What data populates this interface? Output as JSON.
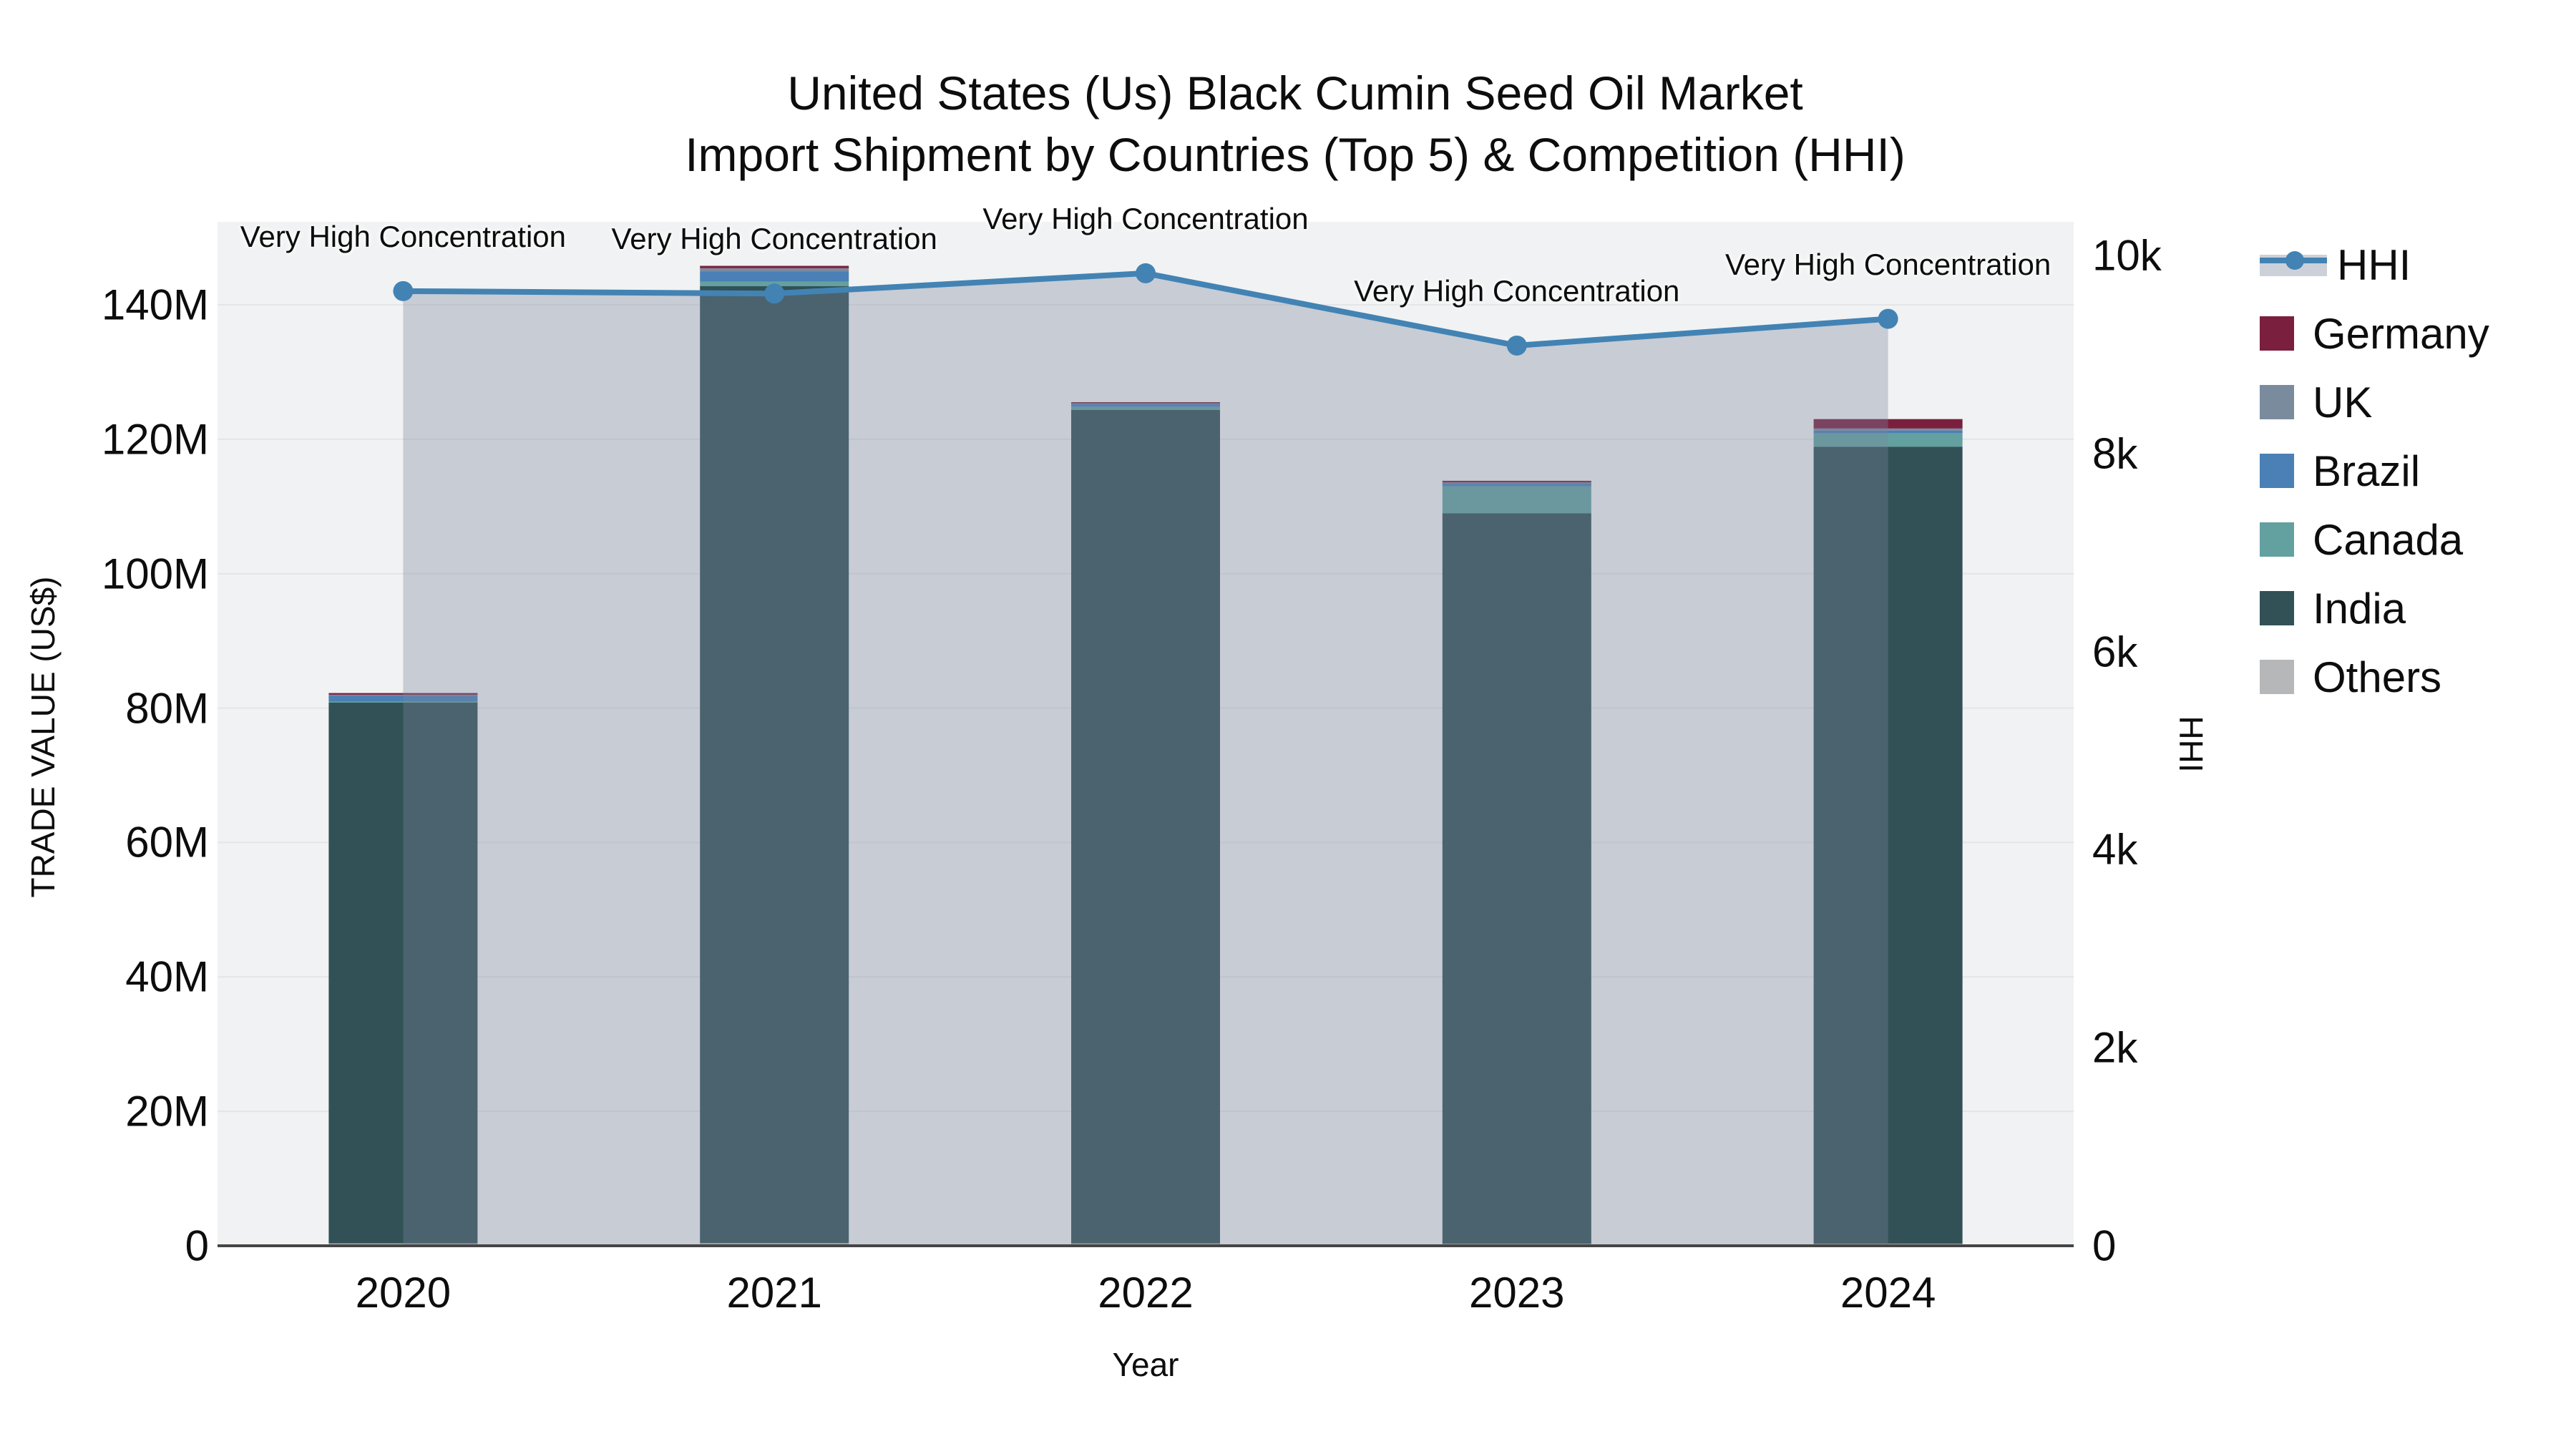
{
  "title": {
    "line1": "United States (Us) Black Cumin Seed Oil Market",
    "line2": "Import Shipment by Countries (Top 5) & Competition (HHI)"
  },
  "axes": {
    "left": {
      "title": "TRADE VALUE (US$)",
      "ticks": [
        {
          "label": "0",
          "value": 0
        },
        {
          "label": "20M",
          "value": 20
        },
        {
          "label": "40M",
          "value": 40
        },
        {
          "label": "60M",
          "value": 60
        },
        {
          "label": "80M",
          "value": 80
        },
        {
          "label": "100M",
          "value": 100
        },
        {
          "label": "120M",
          "value": 120
        },
        {
          "label": "140M",
          "value": 140
        }
      ]
    },
    "right": {
      "title": "HHI",
      "ticks": [
        {
          "label": "0",
          "value": 0
        },
        {
          "label": "2k",
          "value": 2000
        },
        {
          "label": "4k",
          "value": 4000
        },
        {
          "label": "6k",
          "value": 6000
        },
        {
          "label": "8k",
          "value": 8000
        },
        {
          "label": "10k",
          "value": 10000
        }
      ]
    },
    "x": {
      "title": "Year"
    }
  },
  "annotation_text": "Very High Concentration",
  "colors": {
    "hhi_line": "#4283b4",
    "hhi_area": "rgba(122,136,159,0.35)",
    "plot_bg": "#f1f2f3",
    "gridline": "#e4e5e7",
    "axis_line": "#454545",
    "germany": "#7a1f3e",
    "uk": "#7b8b9e",
    "brazil": "#4a80b5",
    "canada": "#63a0a0",
    "india": "#315156",
    "others": "#b5b7b9",
    "legend_band": "#ccd1d9"
  },
  "chart_data": {
    "type": "bar+line",
    "title": "United States (Us) Black Cumin Seed Oil Market Import Shipment by Countries (Top 5) & Competition (HHI)",
    "xlabel": "Year",
    "ylabel_left": "TRADE VALUE (US$)",
    "ylabel_right": "HHI",
    "ylim_left_millions": [
      0,
      152
    ],
    "ylim_right": [
      0,
      10500
    ],
    "grid": true,
    "legend_position": "right",
    "categories": [
      "2020",
      "2021",
      "2022",
      "2023",
      "2024"
    ],
    "bar_unit": "millions USD",
    "stack_order_bottom_to_top": [
      "Others",
      "India",
      "Canada",
      "Brazil",
      "UK",
      "Germany"
    ],
    "series": [
      {
        "name": "Germany",
        "color_key": "germany",
        "values": [
          0.25,
          0.35,
          0.12,
          0.25,
          1.4
        ]
      },
      {
        "name": "UK",
        "color_key": "uk",
        "values": [
          0.12,
          0.5,
          0.1,
          0.12,
          0.3
        ]
      },
      {
        "name": "Brazil",
        "color_key": "brazil",
        "values": [
          0.9,
          1.5,
          0.5,
          0.45,
          0.4
        ]
      },
      {
        "name": "Canada",
        "color_key": "canada",
        "values": [
          0.12,
          0.65,
          0.45,
          4.0,
          2.0
        ]
      },
      {
        "name": "India",
        "color_key": "india",
        "values": [
          80.5,
          142.4,
          124.0,
          108.7,
          118.6
        ]
      },
      {
        "name": "Others",
        "color_key": "others",
        "values": [
          0.35,
          0.4,
          0.35,
          0.3,
          0.3
        ]
      }
    ],
    "bar_totals_millions": [
      82.2,
      145.8,
      125.5,
      113.8,
      123.0
    ],
    "hhi": {
      "name": "HHI",
      "values": [
        9640,
        9615,
        9820,
        9090,
        9360
      ],
      "annotations": [
        "Very High Concentration",
        "Very High Concentration",
        "Very High Concentration",
        "Very High Concentration",
        "Very High Concentration"
      ]
    }
  },
  "legend": {
    "items": [
      "HHI",
      "Germany",
      "UK",
      "Brazil",
      "Canada",
      "India",
      "Others"
    ]
  }
}
